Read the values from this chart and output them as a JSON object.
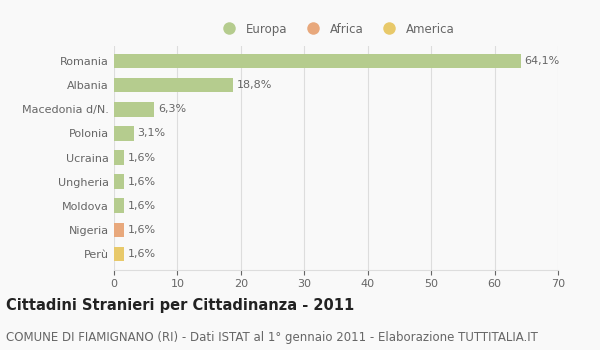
{
  "categories": [
    "Romania",
    "Albania",
    "Macedonia d/N.",
    "Polonia",
    "Ucraina",
    "Ungheria",
    "Moldova",
    "Nigeria",
    "Perù"
  ],
  "values": [
    64.1,
    18.8,
    6.3,
    3.1,
    1.6,
    1.6,
    1.6,
    1.6,
    1.6
  ],
  "labels": [
    "64,1%",
    "18,8%",
    "6,3%",
    "3,1%",
    "1,6%",
    "1,6%",
    "1,6%",
    "1,6%",
    "1,6%"
  ],
  "colors": [
    "#b5cc8e",
    "#b5cc8e",
    "#b5cc8e",
    "#b5cc8e",
    "#b5cc8e",
    "#b5cc8e",
    "#b5cc8e",
    "#e8a87c",
    "#e8c96a"
  ],
  "legend": [
    {
      "label": "Europa",
      "color": "#b5cc8e"
    },
    {
      "label": "Africa",
      "color": "#e8a87c"
    },
    {
      "label": "America",
      "color": "#e8c96a"
    }
  ],
  "xlim": [
    0,
    70
  ],
  "xticks": [
    0,
    10,
    20,
    30,
    40,
    50,
    60,
    70
  ],
  "title": "Cittadini Stranieri per Cittadinanza - 2011",
  "subtitle": "COMUNE DI FIAMIGNANO (RI) - Dati ISTAT al 1° gennaio 2011 - Elaborazione TUTTITALIA.IT",
  "bg_color": "#f9f9f9",
  "plot_bg_color": "#f9f9f9",
  "grid_color": "#dddddd",
  "bar_height": 0.6,
  "title_fontsize": 10.5,
  "subtitle_fontsize": 8.5,
  "label_fontsize": 8,
  "tick_fontsize": 8,
  "legend_fontsize": 8.5,
  "text_color": "#666666"
}
